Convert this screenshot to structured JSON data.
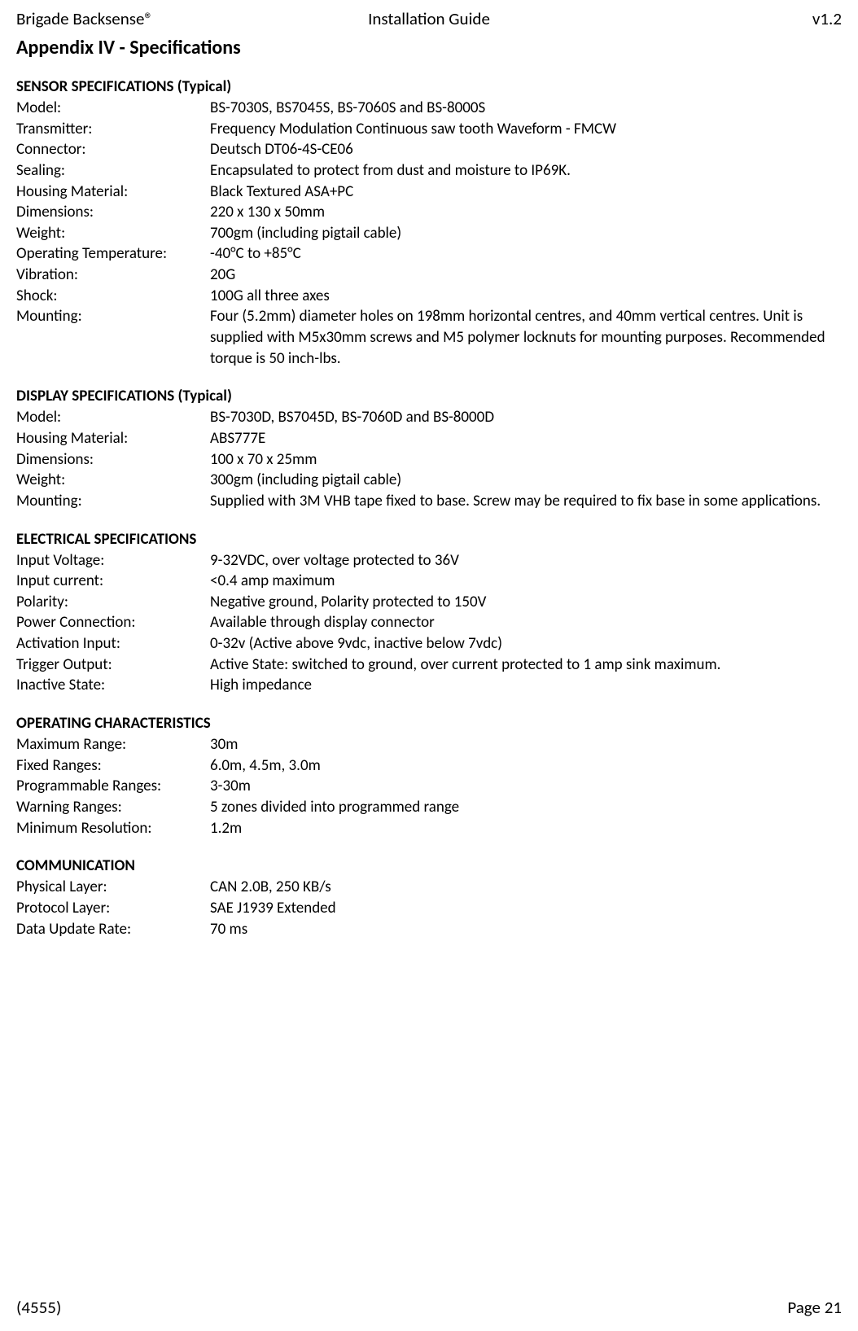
{
  "header": {
    "left": "Brigade Backsense®",
    "center": "Installation Guide",
    "right": "v1.2"
  },
  "appendix_title": "Appendix IV - Specifications",
  "sections": [
    {
      "heading": "SENSOR SPECIFICATIONS (Typical)",
      "rows": [
        {
          "label": "Model:",
          "value": "BS-7030S, BS7045S, BS-7060S and BS-8000S"
        },
        {
          "label": "Transmitter:",
          "value": "Frequency Modulation Continuous saw tooth Waveform - FMCW"
        },
        {
          "label": "Connector:",
          "value": "Deutsch DT06-4S-CE06"
        },
        {
          "label": "Sealing:",
          "value": "Encapsulated to protect from dust and moisture to IP69K."
        },
        {
          "label": "Housing Material:",
          "value": "Black Textured ASA+PC"
        },
        {
          "label": "Dimensions:",
          "value": "220 x 130 x 50mm"
        },
        {
          "label": "Weight:",
          "value": "700gm (including pigtail cable)"
        },
        {
          "label": "Operating Temperature:",
          "value": "-40°C to +85°C"
        },
        {
          "label": "Vibration:",
          "value": "20G"
        },
        {
          "label": "Shock:",
          "value": "100G all three axes"
        },
        {
          "label": "Mounting:",
          "value": "Four (5.2mm) diameter holes on 198mm horizontal centres, and 40mm vertical centres. Unit is supplied with M5x30mm screws and M5 polymer locknuts for mounting purposes. Recommended torque is 50 inch-lbs."
        }
      ]
    },
    {
      "heading": "DISPLAY SPECIFICATIONS (Typical)",
      "rows": [
        {
          "label": "Model:",
          "value": "BS-7030D, BS7045D, BS-7060D and BS-8000D"
        },
        {
          "label": "Housing Material:",
          "value": "ABS777E"
        },
        {
          "label": "Dimensions:",
          "value": "100 x 70 x 25mm"
        },
        {
          "label": "Weight:",
          "value": "300gm (including pigtail cable)"
        },
        {
          "label": "Mounting:",
          "value": "Supplied with 3M VHB tape fixed to base. Screw may be required to fix base in some applications."
        }
      ]
    },
    {
      "heading": "ELECTRICAL SPECIFICATIONS",
      "rows": [
        {
          "label": "Input Voltage:",
          "value": "9-32VDC, over voltage protected to 36V"
        },
        {
          "label": "Input current:",
          "value": "<0.4 amp maximum"
        },
        {
          "label": "Polarity:",
          "value": "Negative ground, Polarity protected to 150V"
        },
        {
          "label": "Power Connection:",
          "value": "Available through display connector"
        },
        {
          "label": "Activation Input:",
          "value": "0-32v (Active above 9vdc, inactive below 7vdc)"
        },
        {
          "label": "Trigger Output:",
          "value": "Active State: switched to ground, over current protected to 1 amp sink maximum."
        },
        {
          "label": "Inactive State:",
          "value": "High impedance"
        }
      ]
    },
    {
      "heading": "OPERATING CHARACTERISTICS",
      "rows": [
        {
          "label": "Maximum Range:",
          "value": "30m"
        },
        {
          "label": "Fixed Ranges:",
          "value": "6.0m, 4.5m, 3.0m"
        },
        {
          "label": "Programmable Ranges:",
          "value": "3-30m"
        },
        {
          "label": "Warning Ranges:",
          "value": "5 zones divided into programmed range"
        },
        {
          "label": "Minimum Resolution:",
          "value": "1.2m"
        }
      ]
    },
    {
      "heading": "COMMUNICATION",
      "rows": [
        {
          "label": "Physical Layer:",
          "value": "CAN 2.0B, 250 KB/s"
        },
        {
          "label": "Protocol Layer:",
          "value": "SAE J1939 Extended"
        },
        {
          "label": "Data Update Rate:",
          "value": "70 ms"
        }
      ]
    }
  ],
  "footer": {
    "left": "(4555)",
    "right": "Page 21"
  }
}
